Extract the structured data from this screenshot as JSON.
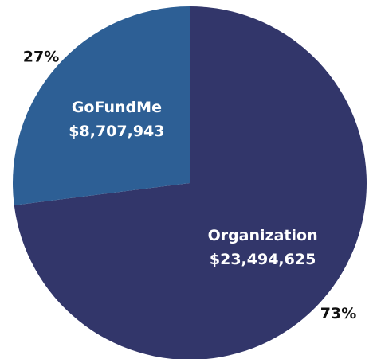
{
  "chart_data": {
    "type": "pie",
    "categories": [
      "Organization",
      "GoFundMe"
    ],
    "values": [
      73,
      27
    ],
    "value_labels": [
      "73%",
      "27%"
    ],
    "amount_labels": [
      "$23,494,625",
      "$8,707,943"
    ],
    "colors": [
      "#32366a",
      "#2d5f95"
    ]
  }
}
